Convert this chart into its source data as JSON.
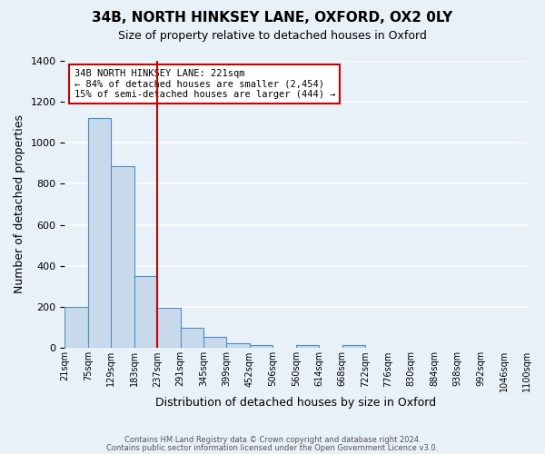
{
  "title": "34B, NORTH HINKSEY LANE, OXFORD, OX2 0LY",
  "subtitle": "Size of property relative to detached houses in Oxford",
  "xlabel": "Distribution of detached houses by size in Oxford",
  "ylabel": "Number of detached properties",
  "bin_edges": [
    "21sqm",
    "75sqm",
    "129sqm",
    "183sqm",
    "237sqm",
    "291sqm",
    "345sqm",
    "399sqm",
    "452sqm",
    "506sqm",
    "560sqm",
    "614sqm",
    "668sqm",
    "722sqm",
    "776sqm",
    "830sqm",
    "884sqm",
    "938sqm",
    "992sqm",
    "1046sqm",
    "1100sqm"
  ],
  "bar_values": [
    200,
    1120,
    885,
    350,
    195,
    100,
    55,
    25,
    15,
    0,
    15,
    0,
    15,
    0,
    0,
    0,
    0,
    0,
    0,
    0
  ],
  "bar_color": "#c9d9ec",
  "bar_edge_color": "#4a90c4",
  "vline_x": 4.0,
  "vline_color": "#cc0000",
  "ylim": [
    0,
    1400
  ],
  "yticks": [
    0,
    200,
    400,
    600,
    800,
    1000,
    1200,
    1400
  ],
  "annotation_line1": "34B NORTH HINKSEY LANE: 221sqm",
  "annotation_line2": "← 84% of detached houses are smaller (2,454)",
  "annotation_line3": "15% of semi-detached houses are larger (444) →",
  "annotation_box_color": "#ffffff",
  "annotation_box_edge": "#cc0000",
  "footer1": "Contains HM Land Registry data © Crown copyright and database right 2024.",
  "footer2": "Contains public sector information licensed under the Open Government Licence v3.0.",
  "background_color": "#e8f0f8",
  "grid_color": "#ffffff"
}
